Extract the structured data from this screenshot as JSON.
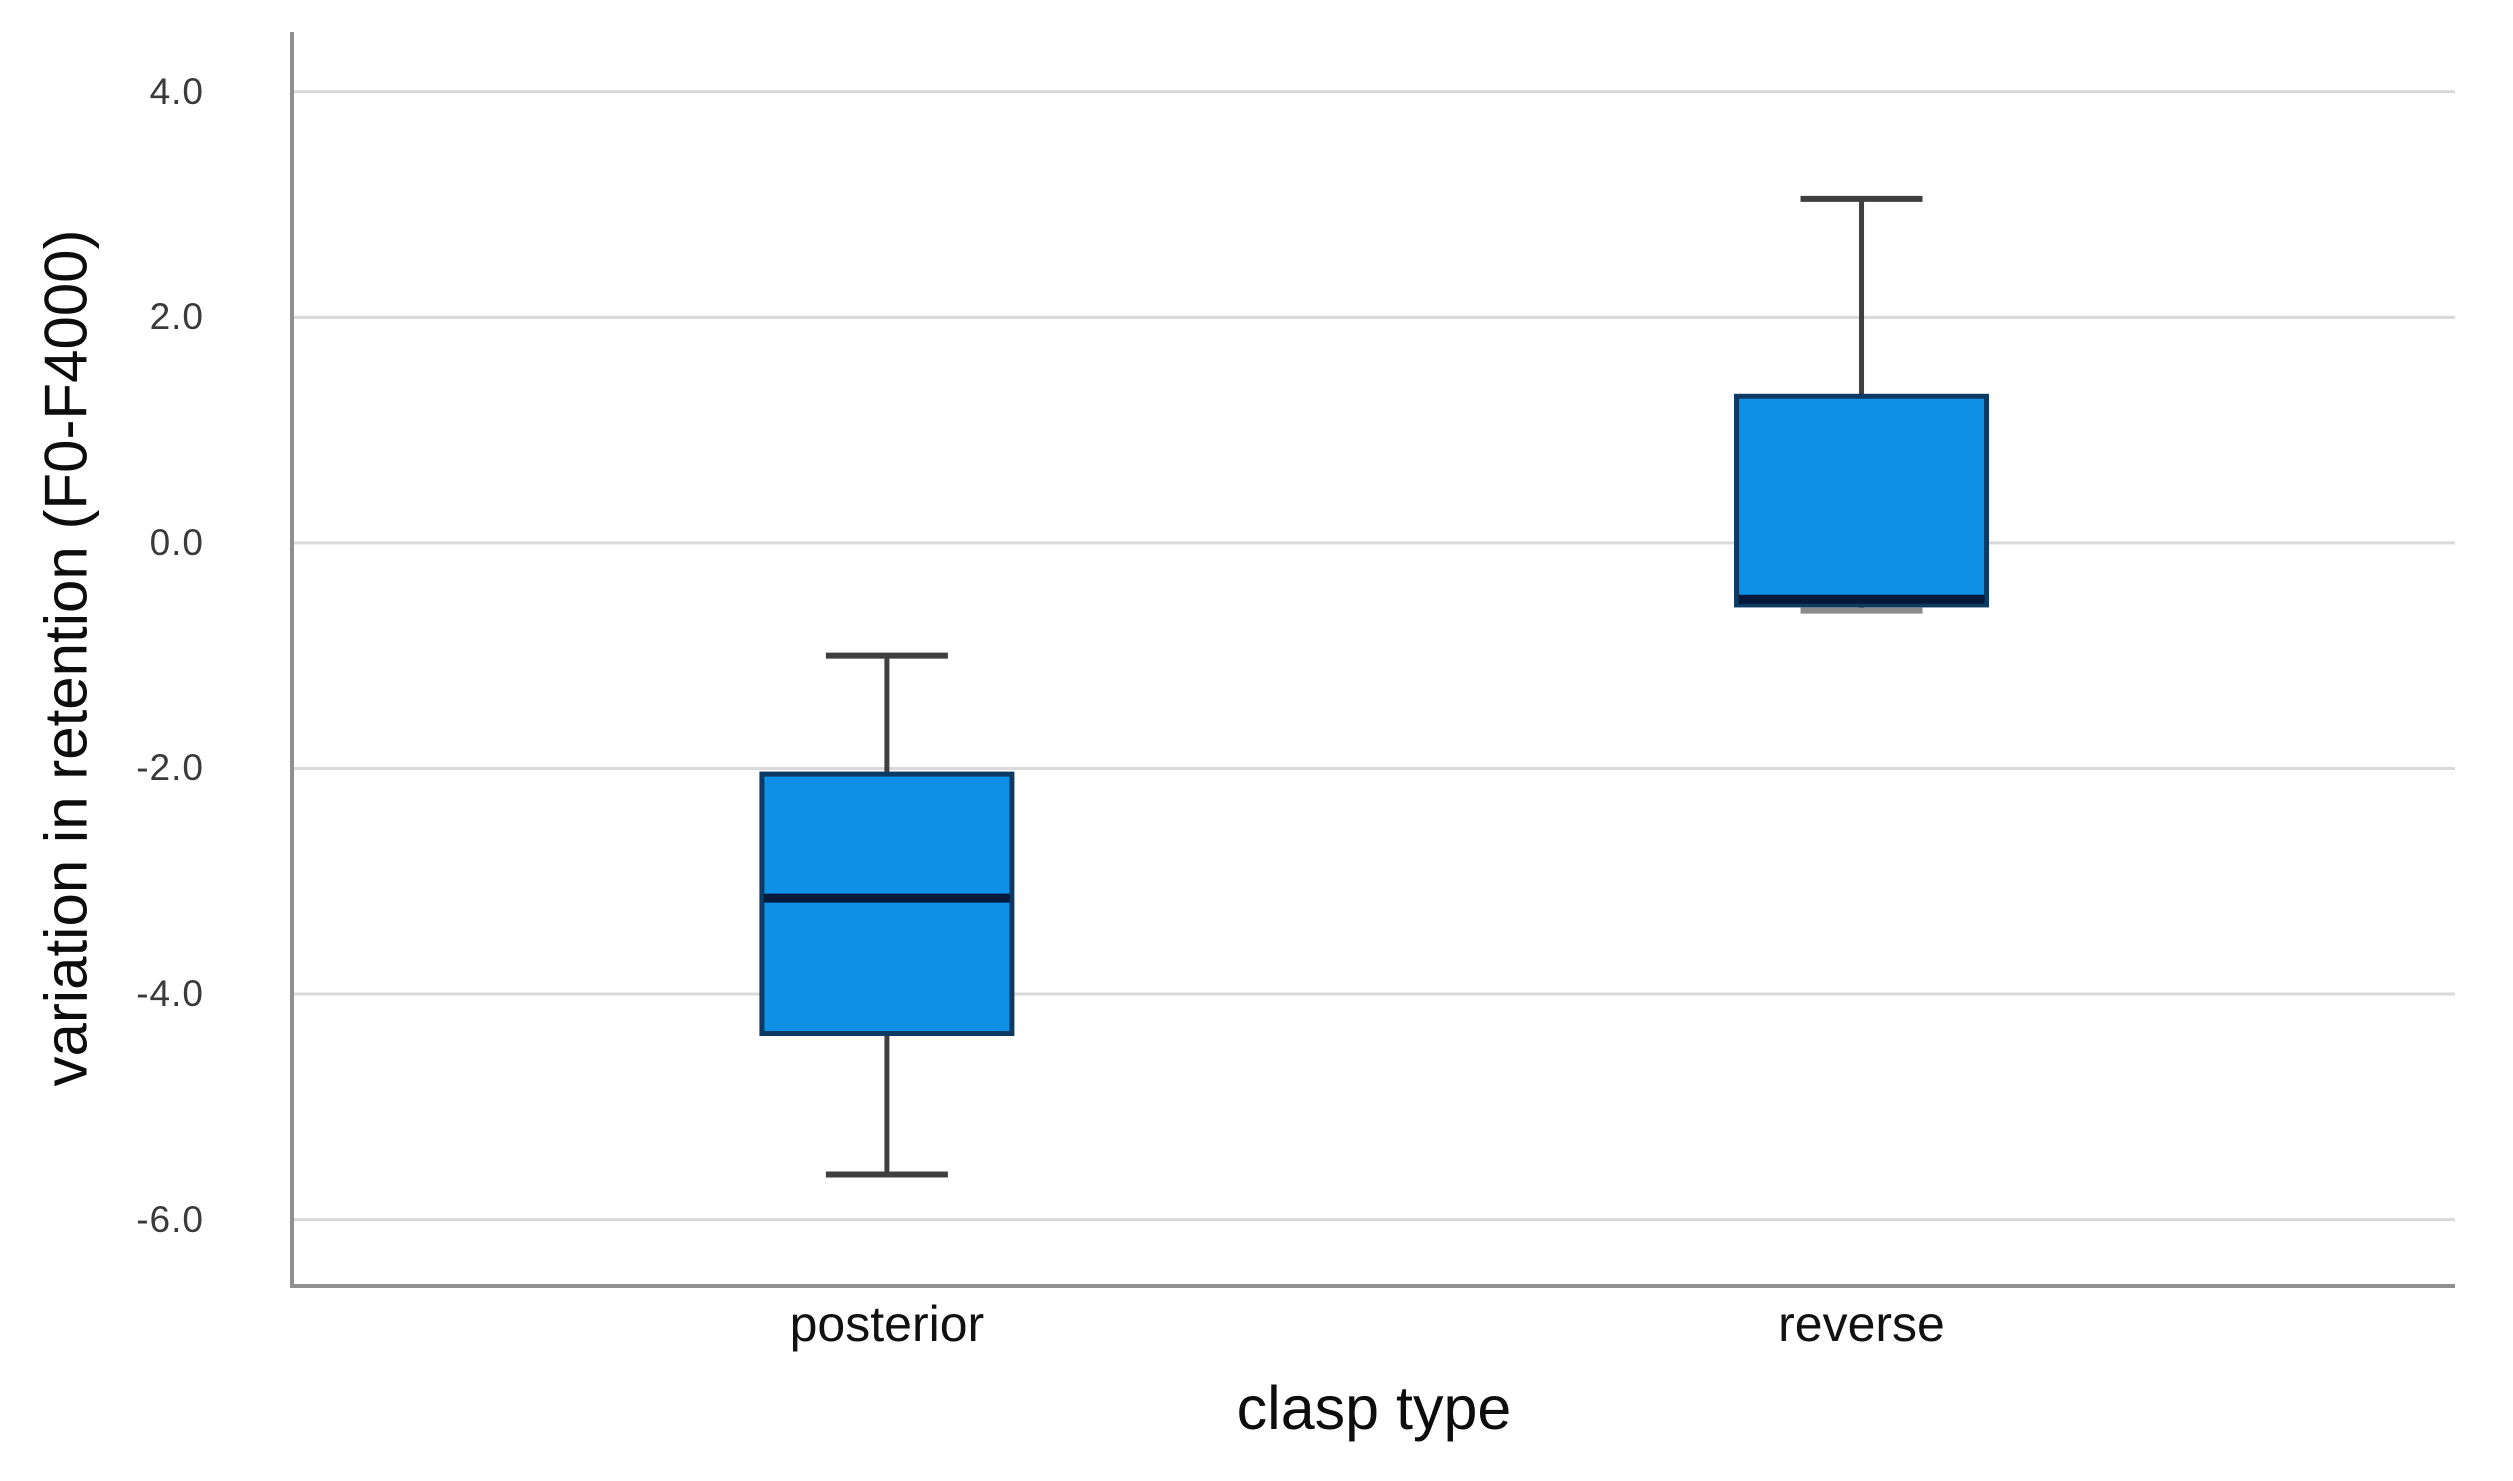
{
  "figure": {
    "background_color": "#ffffff"
  },
  "chart_data": {
    "type": "boxplot",
    "title": "",
    "xlabel": "clasp type",
    "ylabel": "variation in retention (F0-F4000)",
    "categories": [
      "posterior",
      "reverse"
    ],
    "y_ticks": [
      {
        "label": "4.0",
        "value": 4.0
      },
      {
        "label": "2.0",
        "value": 2.0
      },
      {
        "label": "0.0",
        "value": 0.0
      },
      {
        "label": "-2.0",
        "value": -2.0
      },
      {
        "label": "-4.0",
        "value": -4.0
      },
      {
        "label": "-6.0",
        "value": -6.0
      }
    ],
    "y_range": [
      -6.58,
      4.53
    ],
    "grid": true,
    "legend": "none",
    "series": [
      {
        "category": "posterior",
        "whisker_low": -5.6,
        "q1": -4.35,
        "median": -3.15,
        "q3": -2.05,
        "whisker_high": -1.0
      },
      {
        "category": "reverse",
        "whisker_low": -0.6,
        "q1": -0.55,
        "median": -0.5,
        "q3": 1.3,
        "whisker_high": 3.05
      }
    ],
    "colors": {
      "box_fill": "#0E90E6",
      "box_border": "#0C3A63",
      "median_line": "#05193B",
      "whisker": "#3F3F3F",
      "whisker_cap_low_reverse": "#8A8A8A",
      "gridline": "#D9D9D9",
      "axis_line": "#8F8F8F",
      "tick_label_color": "#3A3A3A",
      "label_color": "#111111"
    }
  }
}
